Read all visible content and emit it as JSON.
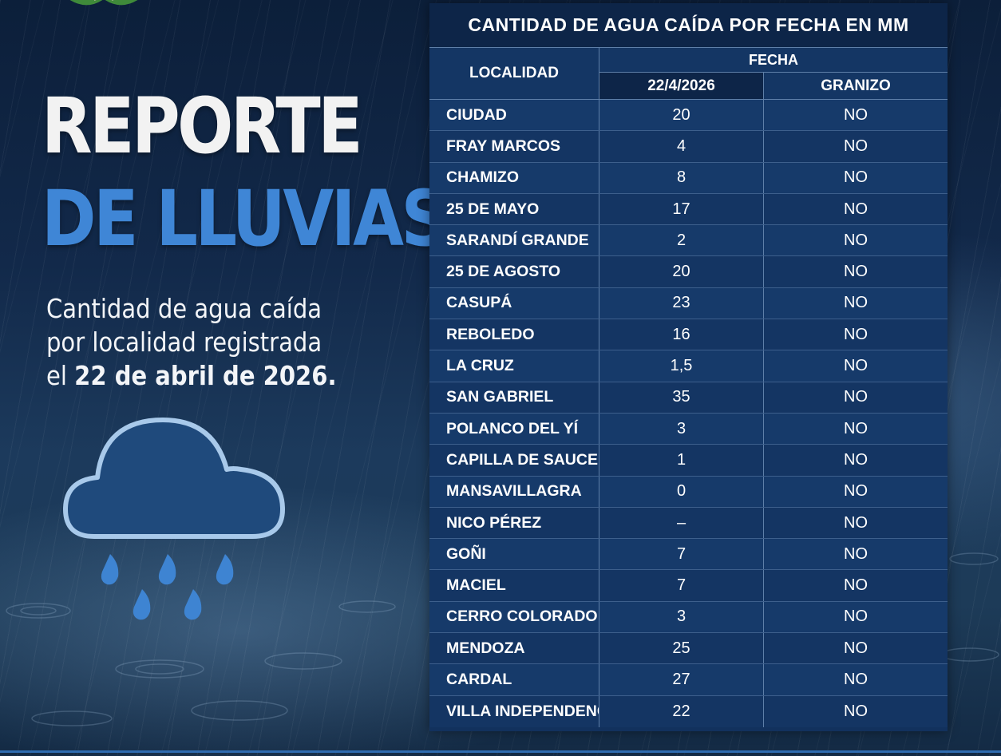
{
  "report": {
    "title_line1": "REPORTE",
    "title_line2": "DE LLUVIAS",
    "subtitle_line1": "Cantidad de agua caída",
    "subtitle_line2": "por localidad registrada",
    "subtitle_line3_prefix": "el",
    "subtitle_line3_bold": "22 de abril de 2026."
  },
  "icons": {
    "logo": "leaf-emblem-icon",
    "weather": "rain-cloud-icon"
  },
  "colors": {
    "title_white": "#f2f2f2",
    "title_blue": "#3f86d6",
    "table_bg": "#12315d",
    "icon_blue": "#1f4a7c"
  },
  "table": {
    "title": "CANTIDAD DE AGUA CAÍDA POR FECHA EN MM",
    "header_localidad": "LOCALIDAD",
    "header_fecha": "FECHA",
    "header_date": "22/4/2026",
    "header_granizo": "GRANIZO",
    "rows": [
      {
        "loc": "CIUDAD",
        "mm": "20",
        "granizo": "NO"
      },
      {
        "loc": "FRAY MARCOS",
        "mm": "4",
        "granizo": "NO"
      },
      {
        "loc": "CHAMIZO",
        "mm": "8",
        "granizo": "NO"
      },
      {
        "loc": "25 DE MAYO",
        "mm": "17",
        "granizo": "NO"
      },
      {
        "loc": "SARANDÍ GRANDE",
        "mm": "2",
        "granizo": "NO"
      },
      {
        "loc": "25 DE AGOSTO",
        "mm": "20",
        "granizo": "NO"
      },
      {
        "loc": "CASUPÁ",
        "mm": "23",
        "granizo": "NO"
      },
      {
        "loc": "REBOLEDO",
        "mm": "16",
        "granizo": "NO"
      },
      {
        "loc": "LA CRUZ",
        "mm": "1,5",
        "granizo": "NO"
      },
      {
        "loc": "SAN GABRIEL",
        "mm": "35",
        "granizo": "NO"
      },
      {
        "loc": "POLANCO DEL YÍ",
        "mm": "3",
        "granizo": "NO"
      },
      {
        "loc": "CAPILLA DE SAUCE",
        "mm": "1",
        "granizo": "NO"
      },
      {
        "loc": "MANSAVILLAGRA",
        "mm": "0",
        "granizo": "NO"
      },
      {
        "loc": "NICO PÉREZ",
        "mm": "–",
        "granizo": "NO"
      },
      {
        "loc": "GOÑI",
        "mm": "7",
        "granizo": "NO"
      },
      {
        "loc": "MACIEL",
        "mm": "7",
        "granizo": "NO"
      },
      {
        "loc": "CERRO COLORADO",
        "mm": "3",
        "granizo": "NO"
      },
      {
        "loc": "MENDOZA",
        "mm": "25",
        "granizo": "NO"
      },
      {
        "loc": "CARDAL",
        "mm": "27",
        "granizo": "NO"
      },
      {
        "loc": "VILLA INDEPENDENCIA",
        "mm": "22",
        "granizo": "NO"
      }
    ]
  }
}
